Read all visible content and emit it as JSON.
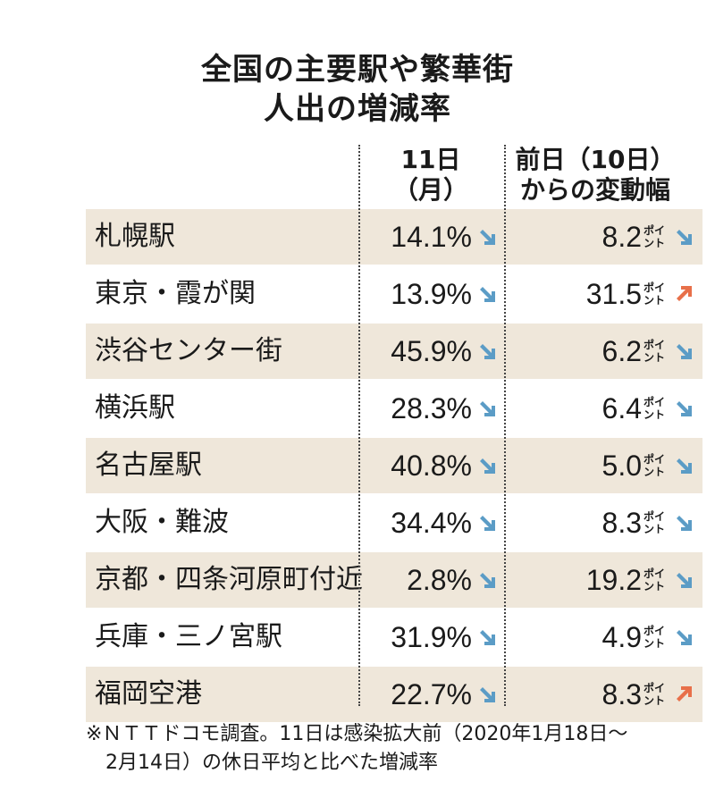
{
  "title_line1": "全国の主要駅や繁華街",
  "title_line2": "人出の増減率",
  "col1_header_line1": "11日",
  "col1_header_line2": "（月）",
  "col2_header_line1": "前日（10日）",
  "col2_header_line2": "からの変動幅",
  "change_unit": "ポイント",
  "colors": {
    "row_shade": "#efe7da",
    "arrow_down": "#5b9cc6",
    "arrow_up": "#e8704a"
  },
  "chart_data": {
    "type": "table",
    "columns": [
      "",
      "11日（月）",
      "前日（10日）からの変動幅"
    ],
    "rows": [
      {
        "name": "札幌駅",
        "rate": "14.1%",
        "rate_dir": "down",
        "change": "8.2",
        "change_dir": "down"
      },
      {
        "name": "東京・霞が関",
        "rate": "13.9%",
        "rate_dir": "down",
        "change": "31.5",
        "change_dir": "up"
      },
      {
        "name": "渋谷センター街",
        "rate": "45.9%",
        "rate_dir": "down",
        "change": "6.2",
        "change_dir": "down"
      },
      {
        "name": "横浜駅",
        "rate": "28.3%",
        "rate_dir": "down",
        "change": "6.4",
        "change_dir": "down"
      },
      {
        "name": "名古屋駅",
        "rate": "40.8%",
        "rate_dir": "down",
        "change": "5.0",
        "change_dir": "down"
      },
      {
        "name": "大阪・難波",
        "rate": "34.4%",
        "rate_dir": "down",
        "change": "8.3",
        "change_dir": "down"
      },
      {
        "name": "京都・四条河原町付近",
        "rate": "2.8%",
        "rate_dir": "down",
        "change": "19.2",
        "change_dir": "down"
      },
      {
        "name": "兵庫・三ノ宮駅",
        "rate": "31.9%",
        "rate_dir": "down",
        "change": "4.9",
        "change_dir": "down"
      },
      {
        "name": "福岡空港",
        "rate": "22.7%",
        "rate_dir": "down",
        "change": "8.3",
        "change_dir": "up"
      }
    ]
  },
  "footnote": "※ＮＴＴドコモ調査。11日は感染拡大前（2020年1月18日〜\n　2月14日）の休日平均と比べた増減率"
}
